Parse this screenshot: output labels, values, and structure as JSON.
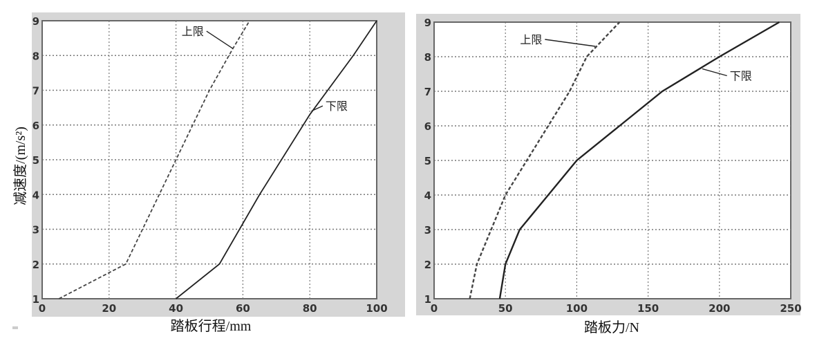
{
  "chart_data": [
    {
      "type": "line",
      "xlabel": "踏板行程/mm",
      "ylabel": "减速度/(m/s²)",
      "xlim": [
        0,
        100
      ],
      "ylim": [
        1,
        9
      ],
      "xticks": [
        "0",
        "20",
        "40",
        "60",
        "80",
        "100"
      ],
      "yticks": [
        "1",
        "2",
        "3",
        "4",
        "5",
        "6",
        "7",
        "8",
        "9"
      ],
      "grid": true,
      "series": [
        {
          "name": "上限",
          "style": "dashed",
          "x": [
            5,
            25,
            40,
            50,
            57,
            62
          ],
          "y": [
            1,
            2,
            5,
            7,
            8.2,
            9
          ]
        },
        {
          "name": "下限",
          "style": "solid",
          "x": [
            40,
            53,
            65,
            80,
            93,
            100
          ],
          "y": [
            1,
            2,
            4,
            6.3,
            8,
            9
          ]
        }
      ],
      "annotations": [
        {
          "text": "上限",
          "series": 0,
          "x": 45,
          "y": 8.7,
          "arrow_to": [
            57,
            8.2
          ]
        },
        {
          "text": "下限",
          "series": 1,
          "x": 88,
          "y": 6.55,
          "arrow_to": [
            80.5,
            6.4
          ]
        }
      ]
    },
    {
      "type": "line",
      "xlabel": "踏板力/N",
      "ylabel": "",
      "xlim": [
        0,
        250
      ],
      "ylim": [
        1,
        9
      ],
      "xticks": [
        "0",
        "50",
        "100",
        "150",
        "200",
        "250"
      ],
      "yticks": [
        "1",
        "2",
        "3",
        "4",
        "5",
        "6",
        "7",
        "8",
        "9"
      ],
      "grid": true,
      "series": [
        {
          "name": "上限",
          "style": "dashed",
          "x": [
            25,
            30,
            40,
            50,
            65,
            80,
            95,
            107,
            130
          ],
          "y": [
            1,
            2,
            3,
            4,
            5,
            6,
            7,
            8,
            9
          ]
        },
        {
          "name": "下限",
          "style": "solid",
          "x": [
            46,
            50,
            60,
            80,
            100,
            130,
            160,
            200,
            242
          ],
          "y": [
            1,
            2,
            3,
            4,
            5,
            6,
            7,
            8,
            9
          ]
        }
      ],
      "annotations": [
        {
          "text": "上限",
          "series": 0,
          "x": 68,
          "y": 8.5,
          "arrow_to": [
            113,
            8.3
          ]
        },
        {
          "text": "下限",
          "series": 1,
          "x": 215,
          "y": 7.45,
          "arrow_to": [
            188,
            7.65
          ]
        }
      ]
    }
  ]
}
